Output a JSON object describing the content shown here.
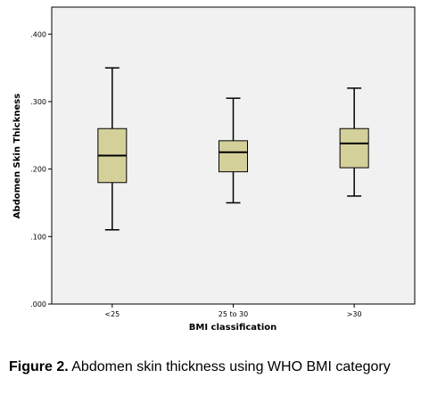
{
  "caption": {
    "label": "Figure 2.",
    "text": "Abdomen skin thickness using WHO BMI category"
  },
  "chart_data": {
    "type": "boxplot",
    "xlabel": "BMI classification",
    "ylabel": "Abdomen Skin Thickness",
    "ylim": [
      0,
      0.44
    ],
    "yticks": [
      0.0,
      0.1,
      0.2,
      0.3,
      0.4
    ],
    "ytick_labels": [
      ".000",
      ".100",
      ".200",
      ".300",
      ".400"
    ],
    "categories": [
      "<25",
      "25 to 30",
      ">30"
    ],
    "boxes": [
      {
        "category": "<25",
        "min": 0.11,
        "q1": 0.18,
        "median": 0.22,
        "q3": 0.26,
        "max": 0.35
      },
      {
        "category": "25 to 30",
        "min": 0.15,
        "q1": 0.196,
        "median": 0.225,
        "q3": 0.242,
        "max": 0.305
      },
      {
        "category": ">30",
        "min": 0.16,
        "q1": 0.202,
        "median": 0.238,
        "q3": 0.26,
        "max": 0.32
      }
    ],
    "grid": false,
    "colors": {
      "plot_bg": "#f1f1f1",
      "box_fill": "#d4d09a",
      "box_stroke": "#000000"
    }
  }
}
